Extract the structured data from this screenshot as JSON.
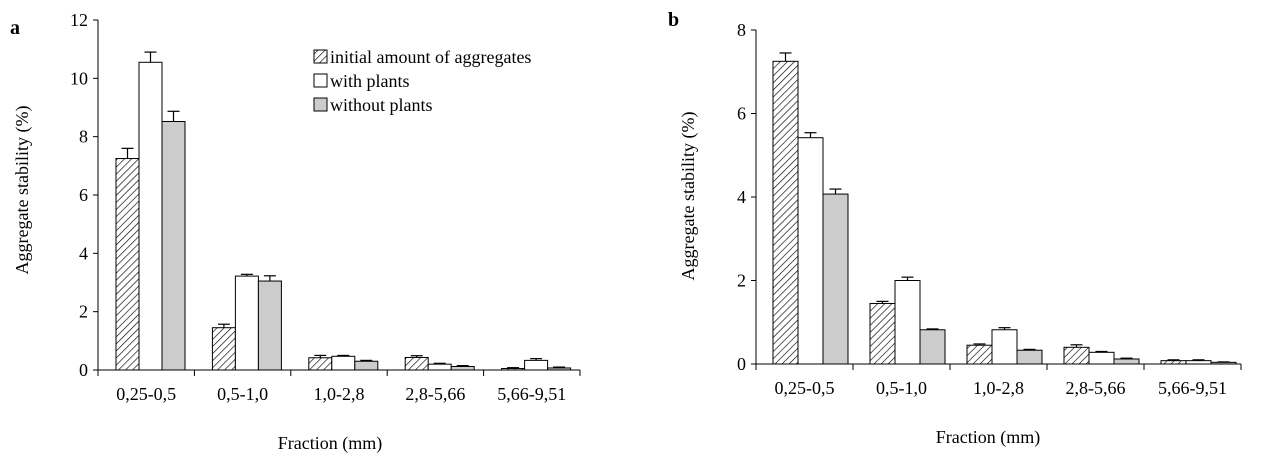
{
  "series_styles": [
    {
      "fill": "url(#hatch)",
      "stroke": "#000000"
    },
    {
      "fill": "#ffffff",
      "stroke": "#000000"
    },
    {
      "fill": "#cccccc",
      "stroke": "#000000"
    }
  ],
  "chart_data": [
    {
      "type": "bar",
      "panel": "a",
      "categories": [
        "0,25-0,5",
        "0,5-1,0",
        "1,0-2,8",
        "2,8-5,66",
        "5,66-9,51"
      ],
      "series": [
        {
          "name": "initial amount of aggregates",
          "values": [
            7.25,
            1.45,
            0.42,
            0.43,
            0.05
          ],
          "errors": [
            0.35,
            0.12,
            0.08,
            0.06,
            0.03
          ]
        },
        {
          "name": "with plants",
          "values": [
            10.55,
            3.22,
            0.47,
            0.2,
            0.33
          ],
          "errors": [
            0.35,
            0.06,
            0.03,
            0.03,
            0.06
          ]
        },
        {
          "name": "without plants",
          "values": [
            8.52,
            3.05,
            0.3,
            0.12,
            0.07
          ],
          "errors": [
            0.35,
            0.18,
            0.03,
            0.03,
            0.03
          ]
        }
      ],
      "xlabel": "Fraction (mm)",
      "ylabel": "Aggregate stability (%)",
      "ylim": [
        0,
        12
      ],
      "yticks": [
        "0",
        "2",
        "4",
        "6",
        "8",
        "10",
        "12"
      ],
      "legend_position": "top-right",
      "grid": false
    },
    {
      "type": "bar",
      "panel": "b",
      "categories": [
        "0,25-0,5",
        "0,5-1,0",
        "1,0-2,8",
        "2,8-5,66",
        "5,66-9,51"
      ],
      "series": [
        {
          "name": "initial amount of aggregates",
          "values": [
            7.25,
            1.45,
            0.45,
            0.4,
            0.08
          ],
          "errors": [
            0.2,
            0.05,
            0.03,
            0.06,
            0.02
          ]
        },
        {
          "name": "with plants",
          "values": [
            5.42,
            2.0,
            0.82,
            0.28,
            0.08
          ],
          "errors": [
            0.12,
            0.08,
            0.05,
            0.02,
            0.02
          ]
        },
        {
          "name": "without plants",
          "values": [
            4.07,
            0.82,
            0.33,
            0.12,
            0.04
          ],
          "errors": [
            0.12,
            0.02,
            0.02,
            0.02,
            0.01
          ]
        }
      ],
      "xlabel": "Fraction (mm)",
      "ylabel": "Aggregate stability  (%)",
      "ylim": [
        0,
        8
      ],
      "yticks": [
        "0",
        "2",
        "4",
        "6",
        "8"
      ],
      "grid": false
    }
  ]
}
